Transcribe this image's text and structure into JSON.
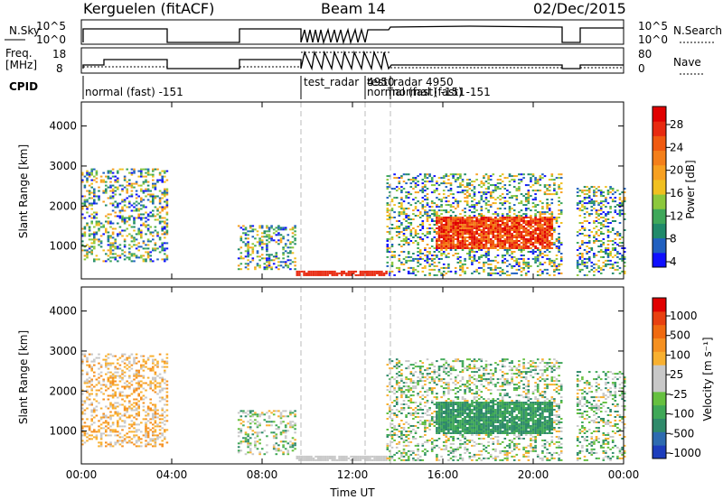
{
  "header": {
    "station": "Kerguelen (fitACF)",
    "beam": "Beam 14",
    "date": "02/Dec/2015"
  },
  "strips": {
    "nsky_label": "N.Sky",
    "nsky_ticks": [
      "10^5",
      "10^0"
    ],
    "nsearch_label": "N.Search",
    "nsearch_ticks": [
      "10^5",
      "10^0"
    ],
    "freq_label_1": "Freq.",
    "freq_label_2": "[MHz]",
    "freq_ticks": [
      "18",
      "8"
    ],
    "nave_label": "Nave",
    "nave_ticks": [
      "80",
      "0"
    ],
    "cpid_label": "CPID",
    "cpid_modes": [
      "normal (fast) -151",
      "test_radar",
      "4950",
      "test_radar 4950",
      "normal (fast) -151",
      "normal (fast) -151"
    ]
  },
  "axes": {
    "ylabel": "Slant Range [km]",
    "xlabel": "Time UT",
    "xticks": [
      "00:00",
      "04:00",
      "08:00",
      "12:00",
      "16:00",
      "20:00",
      "00:00"
    ],
    "yticks": [
      "1000",
      "2000",
      "3000",
      "4000"
    ]
  },
  "colorbars": {
    "power": {
      "label": "Power [dB]",
      "ticks": [
        "28",
        "24",
        "20",
        "16",
        "12",
        "8",
        "4"
      ],
      "colors": [
        "#1010ff",
        "#2060c0",
        "#208a6a",
        "#3fa85a",
        "#8cc83c",
        "#f0c020",
        "#f7a020",
        "#f47f1a",
        "#f05a10",
        "#e82a10",
        "#e00000"
      ]
    },
    "velocity": {
      "label": "Velocity [m s⁻¹]",
      "ticks": [
        "1000",
        "500",
        "100",
        "25",
        "-25",
        "-100",
        "-500",
        "-1000"
      ],
      "colors": [
        "#1d3dbc",
        "#2e6bb0",
        "#2f8a6a",
        "#3fa857",
        "#66c040",
        "#c8c8c8",
        "#c8c8c8",
        "#f8b030",
        "#f59020",
        "#f06a10",
        "#e84010",
        "#e00000"
      ]
    }
  },
  "chart_data": [
    {
      "type": "heatmap",
      "title": "Power",
      "xlabel": "Time UT",
      "ylabel": "Slant Range [km]",
      "xlim": [
        "00:00",
        "24:00"
      ],
      "ylim": [
        180,
        4600
      ],
      "colorbar": {
        "label": "Power [dB]",
        "range": [
          0,
          32
        ]
      },
      "data_segments": [
        {
          "start": "00:00",
          "end": "03:45",
          "range_km": [
            600,
            2900
          ]
        },
        {
          "start": "06:55",
          "end": "09:30",
          "range_km": [
            400,
            1500
          ]
        },
        {
          "start": "09:30",
          "end": "13:30",
          "range_km": [
            250,
            350
          ]
        },
        {
          "start": "13:30",
          "end": "21:15",
          "range_km": [
            250,
            2800
          ]
        },
        {
          "start": "21:55",
          "end": "24:00",
          "range_km": [
            250,
            2500
          ]
        }
      ]
    },
    {
      "type": "heatmap",
      "title": "Velocity",
      "xlabel": "Time UT",
      "ylabel": "Slant Range [km]",
      "xlim": [
        "00:00",
        "24:00"
      ],
      "ylim": [
        180,
        4600
      ],
      "colorbar": {
        "label": "Velocity [m s⁻¹]",
        "range": [
          -1000,
          1000
        ]
      },
      "data_segments": [
        {
          "start": "00:00",
          "end": "03:45",
          "range_km": [
            600,
            2900
          ]
        },
        {
          "start": "06:55",
          "end": "09:30",
          "range_km": [
            400,
            1500
          ]
        },
        {
          "start": "09:30",
          "end": "13:30",
          "range_km": [
            250,
            350
          ]
        },
        {
          "start": "13:30",
          "end": "21:15",
          "range_km": [
            250,
            2800
          ]
        },
        {
          "start": "21:55",
          "end": "24:00",
          "range_km": [
            250,
            2500
          ]
        }
      ]
    }
  ]
}
